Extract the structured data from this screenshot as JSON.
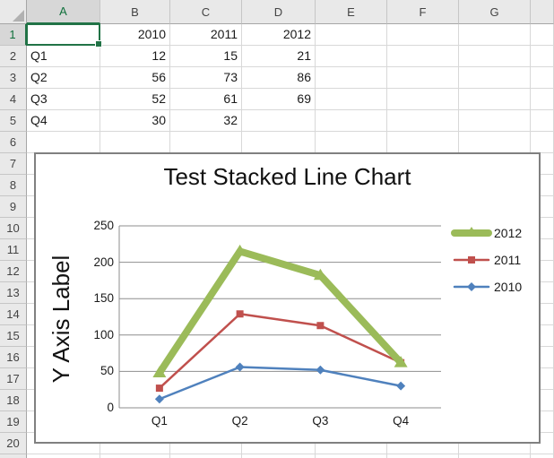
{
  "grid": {
    "selected_cell_ref": "A1",
    "selected_column": "A",
    "selected_row": "1",
    "column_headers": [
      "A",
      "B",
      "C",
      "D",
      "E",
      "F",
      "G"
    ],
    "row_headers": [
      "1",
      "2",
      "3",
      "4",
      "5",
      "6",
      "7",
      "8",
      "9",
      "10",
      "11",
      "12",
      "13",
      "14",
      "15",
      "16",
      "17",
      "18",
      "19",
      "20"
    ],
    "cells": {
      "B1": "2010",
      "C1": "2011",
      "D1": "2012",
      "A2": "Q1",
      "B2": "12",
      "C2": "15",
      "D2": "21",
      "A3": "Q2",
      "B3": "56",
      "C3": "73",
      "D3": "86",
      "A4": "Q3",
      "B4": "52",
      "C4": "61",
      "D4": "69",
      "A5": "Q4",
      "B5": "30",
      "C5": "32"
    }
  },
  "chart_data": {
    "type": "line",
    "stacked": true,
    "title": "Test Stacked Line Chart",
    "ylabel": "Y Axis Label",
    "xlabel": "",
    "categories": [
      "Q1",
      "Q2",
      "Q3",
      "Q4"
    ],
    "series": [
      {
        "name": "2010",
        "values": [
          12,
          56,
          52,
          30
        ],
        "color": "#4f81bd",
        "marker": "diamond",
        "line_width": 2.5
      },
      {
        "name": "2011",
        "values": [
          15,
          73,
          61,
          32
        ],
        "color": "#c0504d",
        "marker": "square",
        "line_width": 2.5
      },
      {
        "name": "2012",
        "values": [
          21,
          86,
          69,
          null
        ],
        "color": "#9bbb59",
        "marker": "triangle",
        "line_width": 8
      }
    ],
    "plotted_stacked_values": {
      "2010": [
        12,
        56,
        52,
        30
      ],
      "2011": [
        27,
        129,
        113,
        62
      ],
      "2012": [
        48,
        215,
        182,
        62
      ]
    },
    "ylim": [
      0,
      250
    ],
    "yticks": [
      0,
      50,
      100,
      150,
      200,
      250
    ],
    "grid": true,
    "legend_position": "right",
    "legend_order": [
      "2012",
      "2011",
      "2010"
    ]
  },
  "colors": {
    "selection_green": "#217346",
    "header_bg": "#e9e9e9",
    "header_selected_bg": "#d7d7d7",
    "grid_line": "#d8d8d8",
    "chart_border": "#808080",
    "chart_gridline": "#8e8e8e",
    "series_2010": "#4f81bd",
    "series_2011": "#c0504d",
    "series_2012": "#9bbb59"
  }
}
